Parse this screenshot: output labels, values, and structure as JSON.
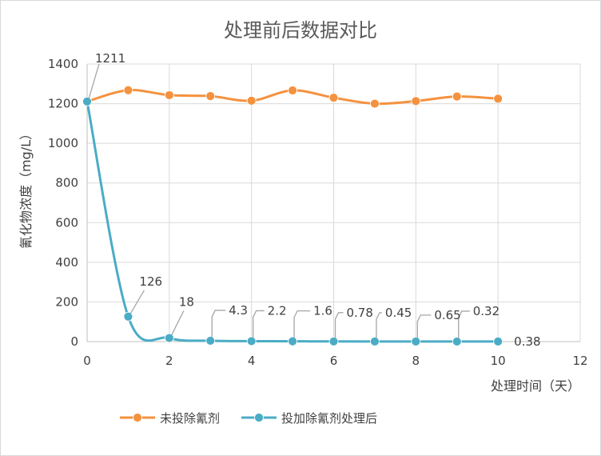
{
  "chart_data": {
    "type": "line",
    "title": "处理前后数据对比",
    "xlabel": "处理时间（天）",
    "ylabel": "氰化物浓度（mg/L）",
    "xlim": [
      0,
      12
    ],
    "ylim": [
      0,
      1400
    ],
    "xticks": [
      "0",
      "2",
      "4",
      "6",
      "8",
      "10",
      "12"
    ],
    "yticks": [
      "0",
      "200",
      "400",
      "600",
      "800",
      "1000",
      "1200",
      "1400"
    ],
    "grid": true,
    "legend_position": "bottom",
    "series": [
      {
        "name": "未投除氰剂",
        "color": "#f4923f",
        "x": [
          0,
          1,
          2,
          3,
          4,
          5,
          6,
          7,
          8,
          9,
          10
        ],
        "y": [
          1211,
          1268,
          1243,
          1238,
          1215,
          1267,
          1230,
          1200,
          1213,
          1236,
          1225
        ]
      },
      {
        "name": "投加除氰剂处理后",
        "color": "#4bacc6",
        "x": [
          0,
          1,
          2,
          3,
          4,
          5,
          6,
          7,
          8,
          9,
          10
        ],
        "y": [
          1211,
          126,
          18,
          4.3,
          2.2,
          1.6,
          0.78,
          0.45,
          0.65,
          0.32,
          0.38
        ],
        "labels": [
          "1211",
          "126",
          "18",
          "4.3",
          "2.2",
          "1.6",
          "0.78",
          "0.45",
          "0.65",
          "0.32",
          "0.38"
        ]
      }
    ]
  }
}
